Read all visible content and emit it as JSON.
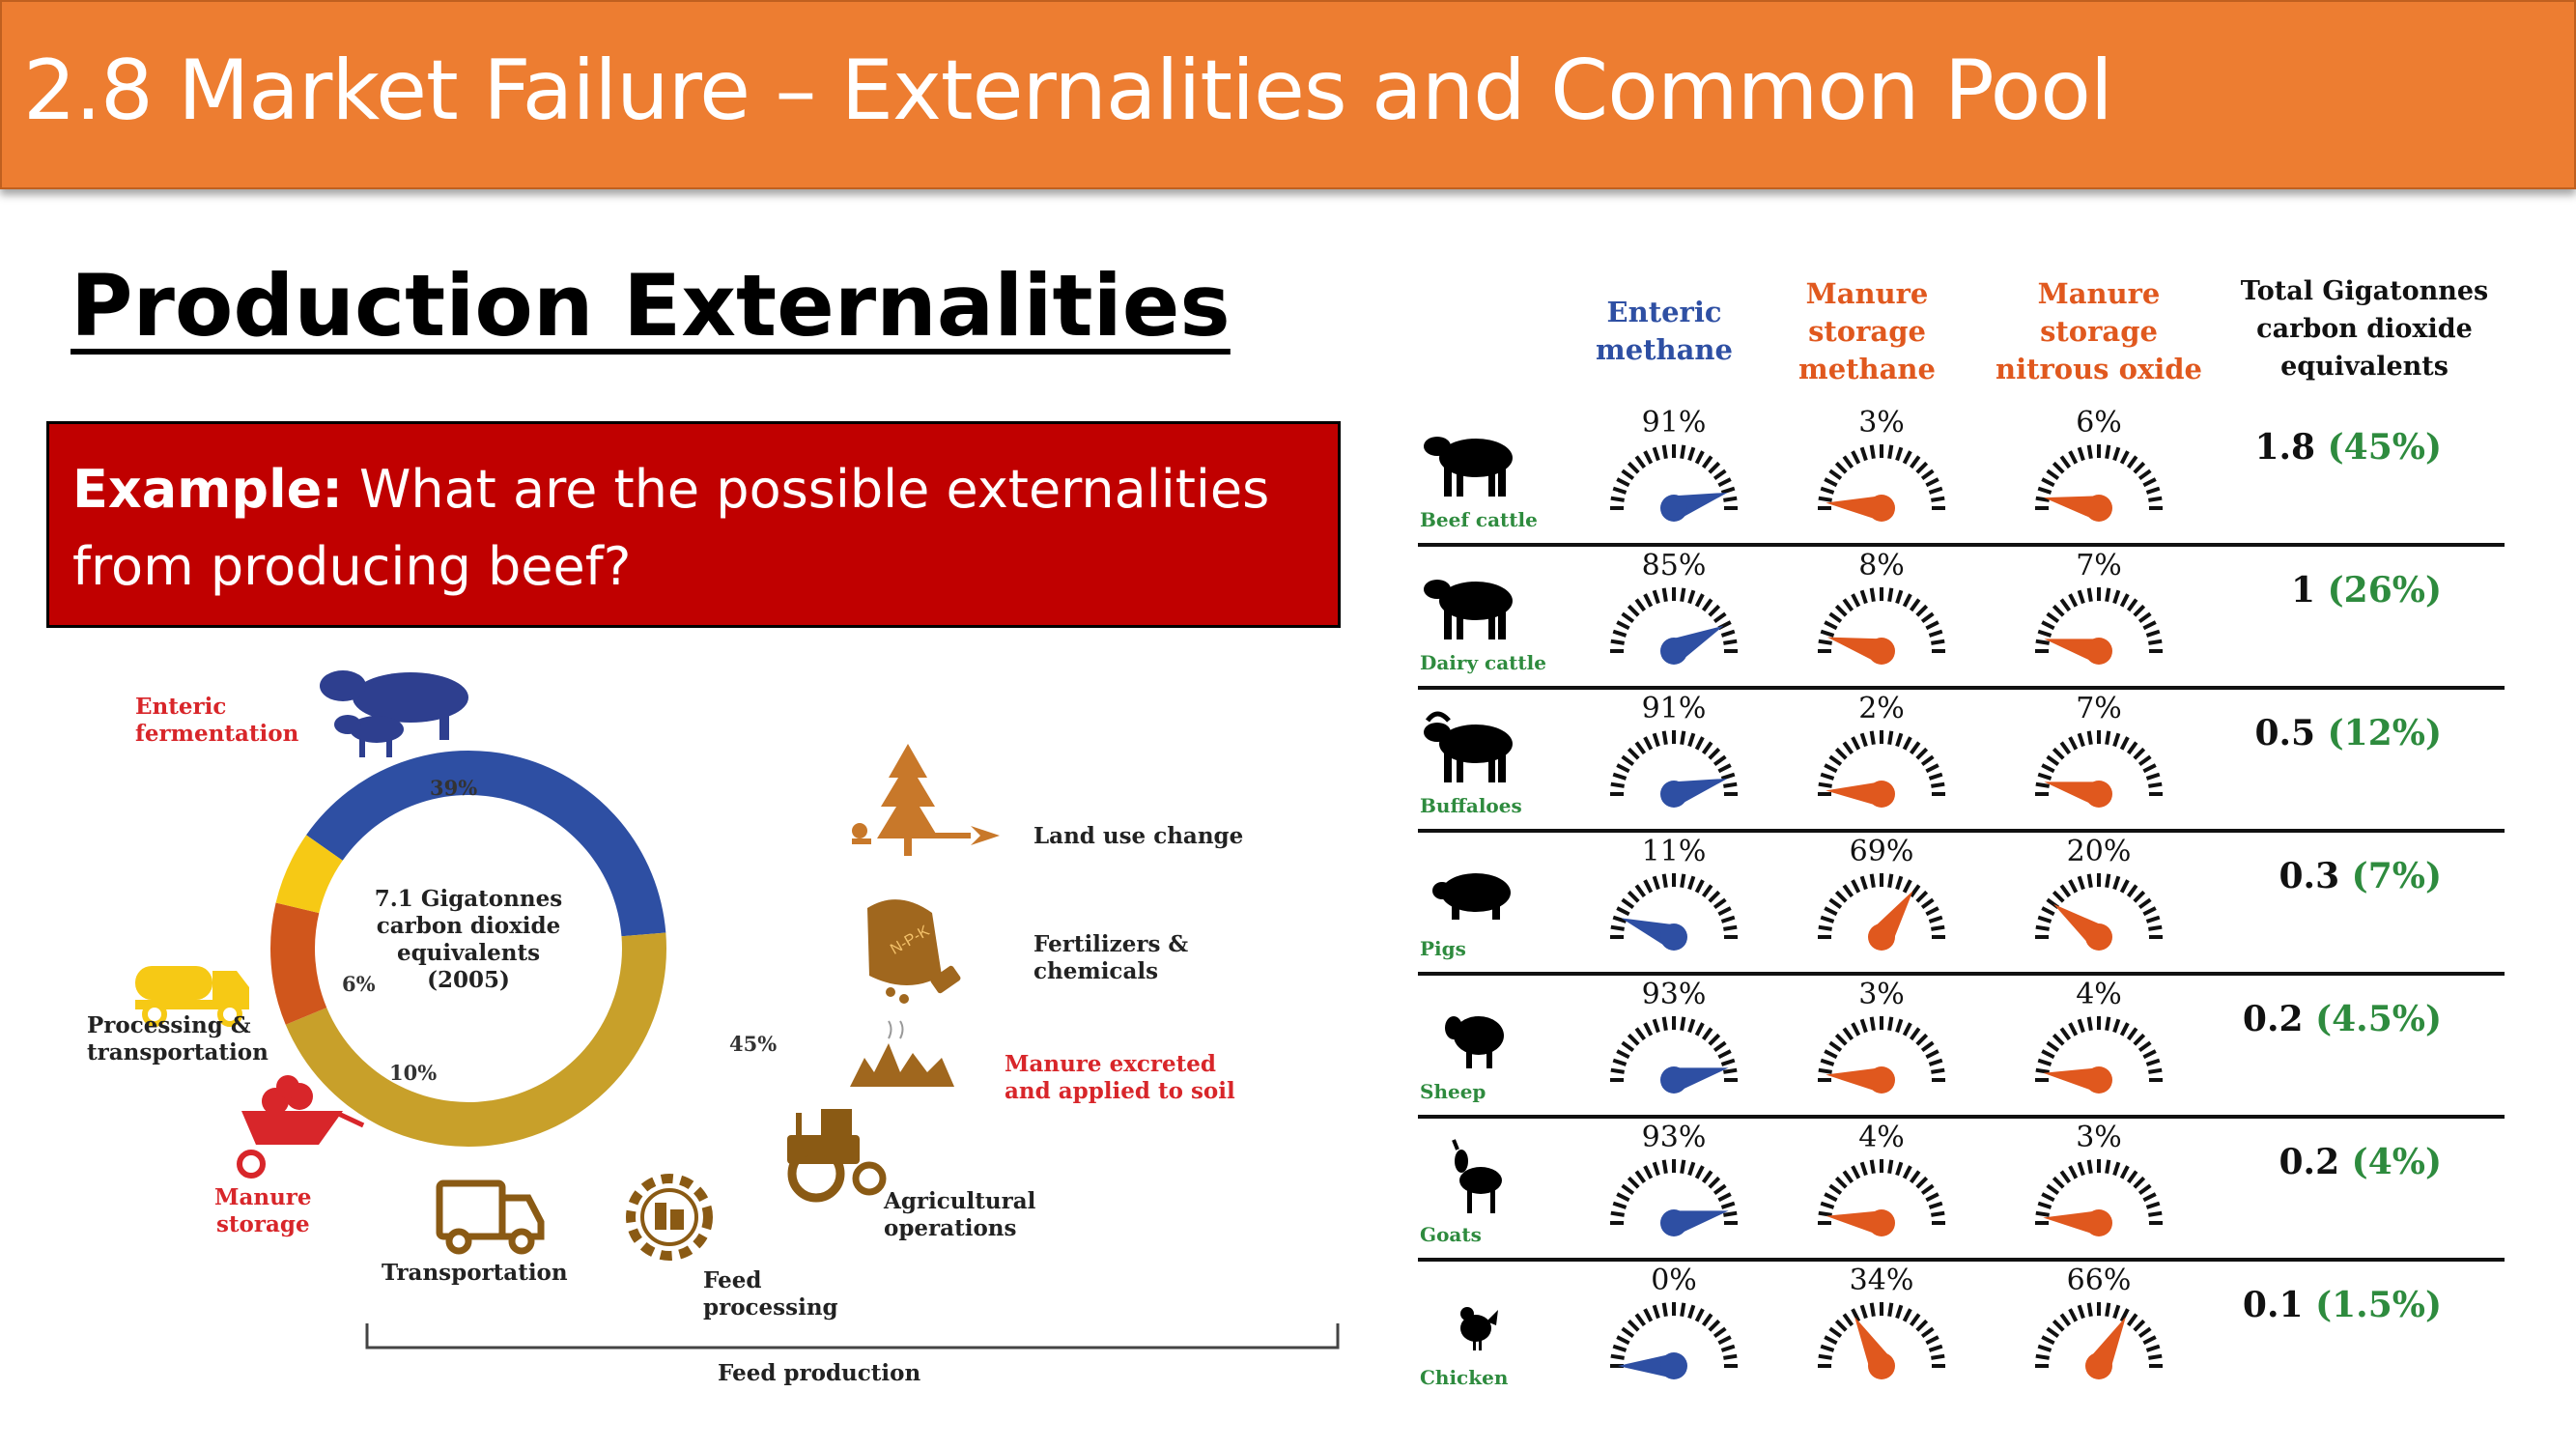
{
  "title": "2.8 Market Failure – Externalities and Common Pool",
  "heading": "Production Externalities",
  "example": {
    "label": "Example:",
    "text": " What are the possible externalities from producing beef?"
  },
  "infographic": {
    "center_text": [
      "7.1 Gigatonnes",
      "carbon dioxide",
      "equivalents",
      "(2005)"
    ],
    "chart_data": {
      "type": "pie",
      "title": "7.1 Gigatonnes carbon dioxide equivalents (2005)",
      "slices": [
        {
          "label": "Enteric fermentation",
          "value": 39,
          "color": "#2E4FA3",
          "display": "39%"
        },
        {
          "label": "Feed production",
          "value": 45,
          "color": "#C8A02A",
          "display": "45%"
        },
        {
          "label": "Manure storage",
          "value": 10,
          "color": "#D0561C",
          "display": "10%"
        },
        {
          "label": "Processing & transportation",
          "value": 6,
          "color": "#F6C915",
          "display": "6%"
        }
      ]
    },
    "labels": {
      "enteric": [
        "Enteric",
        "fermentation"
      ],
      "land_use": "Land use change",
      "fertilizers": [
        "Fertilizers &",
        "chemicals"
      ],
      "manure_excreted": [
        "Manure excreted",
        "and applied to soil"
      ],
      "agricultural": [
        "Agricultural",
        "operations"
      ],
      "feed_processing": [
        "Feed",
        "processing"
      ],
      "transportation": "Transportation",
      "manure_storage": [
        "Manure",
        "storage"
      ],
      "processing": [
        "Processing &",
        "transportation"
      ],
      "feed_production": "Feed production",
      "npk": "N-P-K"
    }
  },
  "table": {
    "headers": {
      "enteric": [
        "Enteric",
        "methane"
      ],
      "manure_methane": [
        "Manure",
        "storage",
        "methane"
      ],
      "manure_nitrous": [
        "Manure",
        "storage",
        "nitrous oxide"
      ],
      "total": [
        "Total Gigatonnes",
        "carbon dioxide",
        "equivalents"
      ]
    },
    "colors": {
      "enteric": "#2E4FA3",
      "manure": "#E0581E",
      "header_blue": "#2E4FA3",
      "header_orange": "#E0581E",
      "share_green": "#2E8B3E"
    },
    "rows": [
      {
        "animal": "Beef cattle",
        "icon": "cow-icon",
        "enteric": 91,
        "manure_methane": 3,
        "manure_nitrous": 6,
        "total": "1.8",
        "share": "(45%)"
      },
      {
        "animal": "Dairy cattle",
        "icon": "cow-icon",
        "enteric": 85,
        "manure_methane": 8,
        "manure_nitrous": 7,
        "total": "1",
        "share": "(26%)"
      },
      {
        "animal": "Buffaloes",
        "icon": "buffalo-icon",
        "enteric": 91,
        "manure_methane": 2,
        "manure_nitrous": 7,
        "total": "0.5",
        "share": "(12%)"
      },
      {
        "animal": "Pigs",
        "icon": "pig-icon",
        "enteric": 11,
        "manure_methane": 69,
        "manure_nitrous": 20,
        "total": "0.3",
        "share": "(7%)"
      },
      {
        "animal": "Sheep",
        "icon": "sheep-icon",
        "enteric": 93,
        "manure_methane": 3,
        "manure_nitrous": 4,
        "total": "0.2",
        "share": "(4.5%)"
      },
      {
        "animal": "Goats",
        "icon": "goat-icon",
        "enteric": 93,
        "manure_methane": 4,
        "manure_nitrous": 3,
        "total": "0.2",
        "share": "(4%)"
      },
      {
        "animal": "Chicken",
        "icon": "chicken-icon",
        "enteric": 0,
        "manure_methane": 34,
        "manure_nitrous": 66,
        "total": "0.1",
        "share": "(1.5%)"
      }
    ]
  }
}
